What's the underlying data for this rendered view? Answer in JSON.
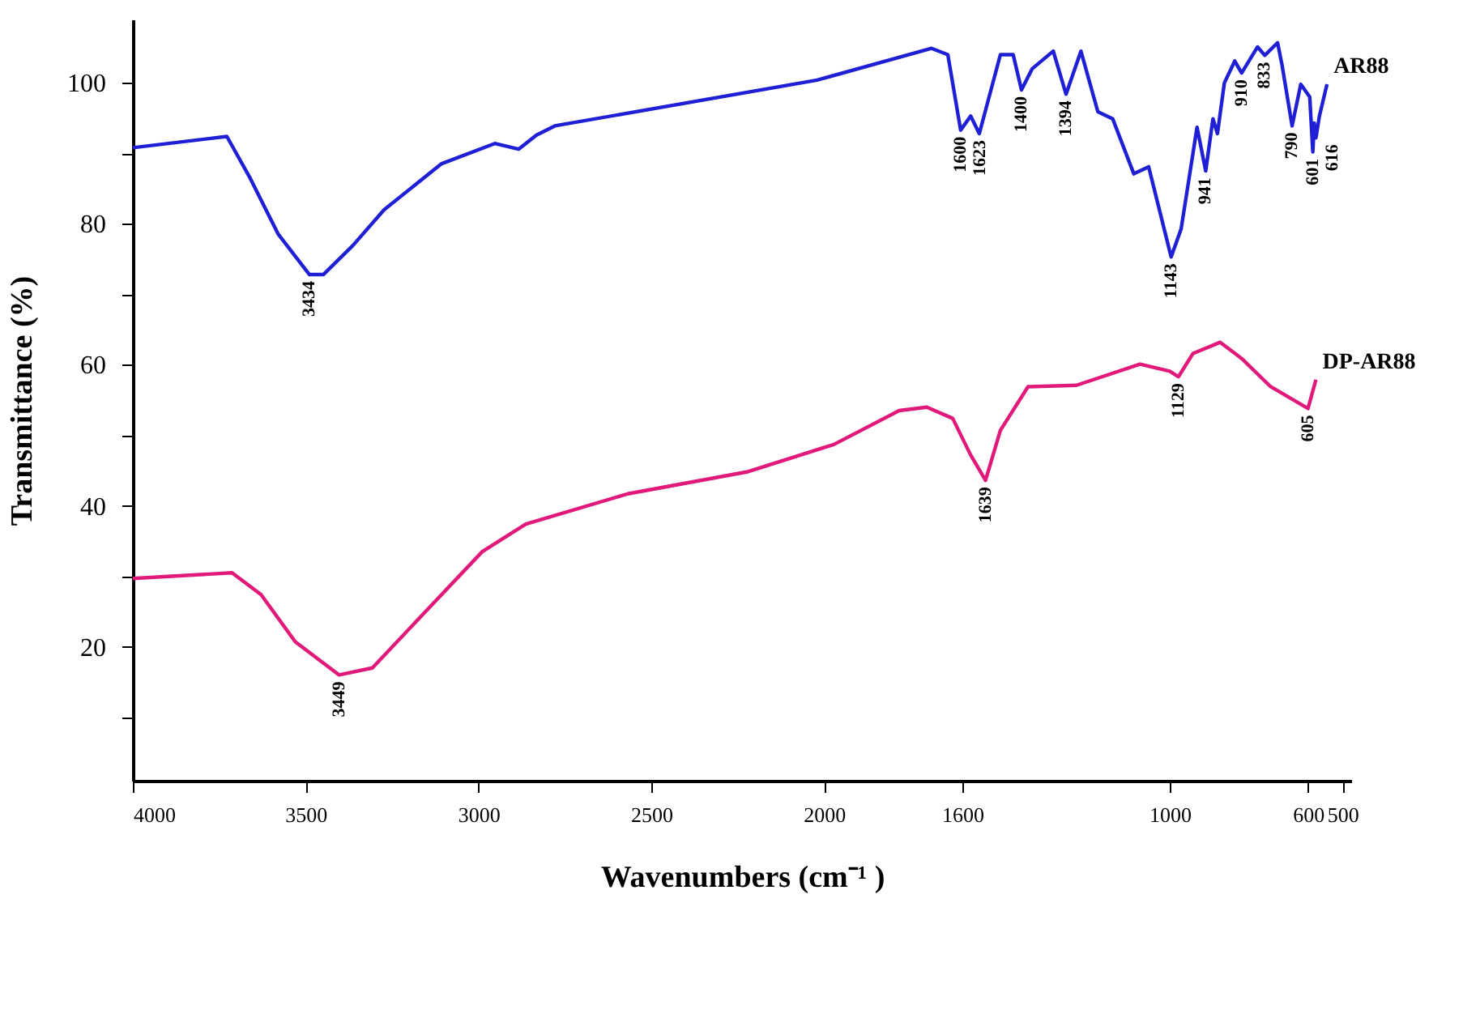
{
  "chart_data": {
    "type": "line",
    "xlabel": "Wavenumbers (cm⁻¹ )",
    "ylabel": "Transmittance (%)",
    "xlim": [
      4000,
      475
    ],
    "xticks": [
      4000,
      3500,
      3000,
      2500,
      2000,
      1600,
      1000,
      600,
      500
    ],
    "ylim": [
      1,
      109
    ],
    "yticks": [
      {
        "value": 10,
        "label": null
      },
      20,
      {
        "value": 30,
        "label": null
      },
      40,
      {
        "value": 50,
        "label": null
      },
      60,
      {
        "value": 70,
        "label": null
      },
      80,
      {
        "value": 90,
        "label": null
      },
      100
    ],
    "grid": false,
    "legend": false,
    "marker": "none",
    "line_style": "solid",
    "series": [
      {
        "name": "AR88",
        "color": "#1f1fd6",
        "x": [
          4000,
          3728,
          3663,
          3579,
          3489,
          3449,
          3364,
          3273,
          3108,
          2953,
          2884,
          2832,
          2779,
          2020,
          1689,
          1642,
          1605,
          1576,
          1551,
          1490,
          1453,
          1429,
          1398,
          1337,
          1300,
          1257,
          1208,
          1165,
          1104,
          1061,
          996,
          967,
          921,
          896,
          875,
          862,
          842,
          812,
          792,
          746,
          725,
          688,
          675,
          646,
          621,
          595,
          586,
          582,
          577,
          567,
          545
        ],
        "values": [
          90.8,
          92.4,
          86.7,
          78.5,
          72.8,
          72.8,
          76.9,
          82,
          88.5,
          91.4,
          90.6,
          92.6,
          93.9,
          100.4,
          104.9,
          104,
          93.3,
          95.3,
          92.8,
          104,
          104,
          99,
          102,
          104.5,
          98.4,
          104.5,
          95.9,
          94.9,
          87.1,
          88.1,
          75.3,
          79.3,
          93.7,
          87.5,
          94.9,
          92.8,
          100,
          103.1,
          101.4,
          105.1,
          103.9,
          105.7,
          102.5,
          93.9,
          99.8,
          98,
          90.2,
          94.3,
          92.2,
          95.3,
          99.8
        ]
      },
      {
        "name": "DP-AR88",
        "color": "#e0197a",
        "x": [
          4000,
          3713,
          3629,
          3530,
          3403,
          3307,
          3159,
          2989,
          2863,
          2568,
          2224,
          1972,
          1783,
          1703,
          1628,
          1576,
          1533,
          1490,
          1410,
          1270,
          1086,
          1000,
          975,
          933,
          854,
          792,
          708,
          600,
          577
        ],
        "values": [
          29.7,
          30.5,
          27.4,
          20.7,
          16,
          17,
          24.7,
          33.5,
          37.4,
          41.7,
          44.8,
          48.7,
          53.5,
          54,
          52.4,
          47.2,
          43.6,
          50.7,
          56.9,
          57.1,
          60.1,
          59.1,
          58.3,
          61.6,
          63.2,
          60.9,
          56.9,
          53.8,
          57.9
        ]
      }
    ],
    "annotations": [
      {
        "text": "3434",
        "x": 3489,
        "y": 72.8
      },
      {
        "text": "1600",
        "x": 1605,
        "y": 93.3
      },
      {
        "text": "1623",
        "x": 1551,
        "y": 92.8
      },
      {
        "text": "1400",
        "x": 1429,
        "y": 99
      },
      {
        "text": "1394",
        "x": 1300,
        "y": 98.4
      },
      {
        "text": "1143",
        "x": 996,
        "y": 75.3
      },
      {
        "text": "941",
        "x": 896,
        "y": 87.5
      },
      {
        "text": "910",
        "x": 792,
        "y": 101.4
      },
      {
        "text": "833",
        "x": 725,
        "y": 103.9
      },
      {
        "text": "790",
        "x": 646,
        "y": 93.9
      },
      {
        "text": "601",
        "x": 586,
        "y": 90.2
      },
      {
        "text": "616",
        "x": 577,
        "y": 92.2
      },
      {
        "text": "3449",
        "x": 3403,
        "y": 16
      },
      {
        "text": "1639",
        "x": 1533,
        "y": 43.6
      },
      {
        "text": "1129",
        "x": 975,
        "y": 58.3
      },
      {
        "text": "605",
        "x": 600,
        "y": 53.8
      }
    ]
  }
}
